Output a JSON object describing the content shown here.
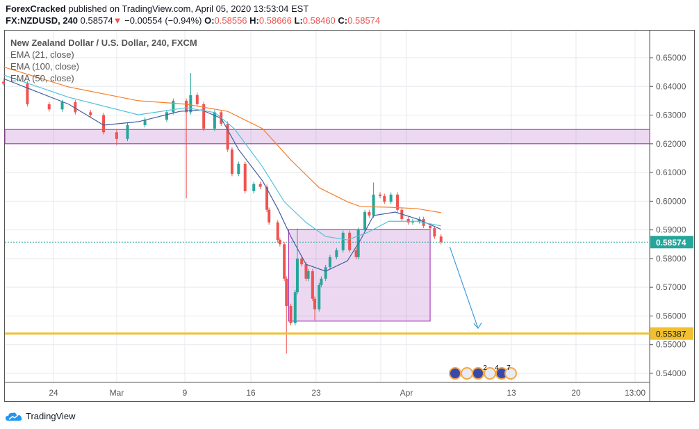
{
  "header": {
    "author": "ForexCracked",
    "published_text": "published on TradingView.com, April 05, 2020 13:53:04 EST",
    "symbol": "FX:NZDUSD, 240",
    "last": "0.58574",
    "change": "−0.00554 (−0.94%)",
    "open_label": "O:",
    "open": "0.58556",
    "high_label": "H:",
    "high": "0.58666",
    "low_label": "L:",
    "low": "0.58460",
    "close_label": "C:",
    "close": "0.58574"
  },
  "legend": {
    "title": "New Zealand Dollar / U.S. Dollar, 240, FXCM",
    "ema1": "EMA (21, close)",
    "ema2": "EMA (100, close)",
    "ema3": "EMA (50, close)"
  },
  "footer": {
    "brand": "TradingView"
  },
  "colors": {
    "up": "#26a69a",
    "down": "#ef5350",
    "ema21": "#3f5e9e",
    "ema50": "#4fc3d9",
    "ema100": "#f57f2b",
    "zone": "#9c27b0",
    "support": "#f0c02e",
    "arrow": "#3d9be0",
    "last_price": "#26a69a"
  },
  "chart_data": {
    "type": "candlestick",
    "symbol": "NZDUSD",
    "interval": "240",
    "ylim": [
      0.5365,
      0.6592
    ],
    "y_ticks": [
      "0.65000",
      "0.64000",
      "0.63000",
      "0.62000",
      "0.61000",
      "0.60000",
      "0.59000",
      "0.58000",
      "0.57000",
      "0.56000",
      "0.55000",
      "0.54000"
    ],
    "x_ticks": [
      "24",
      "Mar",
      "9",
      "16",
      "23",
      "Apr",
      "13",
      "20",
      "13:00"
    ],
    "grid": true,
    "candles": [
      {
        "t": "2020-02-18 04:00",
        "c": 0.641
      },
      {
        "t": "2020-02-20 00:00",
        "c": 0.6338
      },
      {
        "t": "2020-02-21 16:00",
        "c": 0.632
      },
      {
        "t": "2020-02-24 16:00",
        "c": 0.6345
      },
      {
        "t": "2020-02-25 16:00",
        "c": 0.631
      },
      {
        "t": "2020-02-26 20:00",
        "c": 0.63
      },
      {
        "t": "2020-02-27 20:00",
        "c": 0.624
      },
      {
        "t": "2020-02-28 20:00",
        "c": 0.6217,
        "l": 0.6195
      },
      {
        "t": "2020-03-02 16:00",
        "c": 0.6265
      },
      {
        "t": "2020-03-04 00:00",
        "c": 0.6284
      },
      {
        "t": "2020-03-05 16:00",
        "c": 0.631
      },
      {
        "t": "2020-03-06 04:00",
        "c": 0.635
      },
      {
        "t": "2020-03-09 04:00",
        "c": 0.631,
        "l": 0.601
      },
      {
        "t": "2020-03-09 12:00",
        "c": 0.637,
        "h": 0.6447
      },
      {
        "t": "2020-03-10 00:00",
        "c": 0.6338
      },
      {
        "t": "2020-03-10 12:00",
        "c": 0.6253
      },
      {
        "t": "2020-03-11 08:00",
        "c": 0.631
      },
      {
        "t": "2020-03-11 20:00",
        "c": 0.627
      },
      {
        "t": "2020-03-12 08:00",
        "c": 0.618
      },
      {
        "t": "2020-03-12 16:00",
        "c": 0.6095
      },
      {
        "t": "2020-03-13 04:00",
        "c": 0.613
      },
      {
        "t": "2020-03-13 16:00",
        "c": 0.6035
      },
      {
        "t": "2020-03-16 08:00",
        "c": 0.606
      },
      {
        "t": "2020-03-16 20:00",
        "c": 0.605
      },
      {
        "t": "2020-03-17 08:00",
        "c": 0.597
      },
      {
        "t": "2020-03-17 12:00",
        "c": 0.5926
      },
      {
        "t": "2020-03-18 04:00",
        "c": 0.5865
      },
      {
        "t": "2020-03-18 08:00",
        "c": 0.585
      },
      {
        "t": "2020-03-18 16:00",
        "c": 0.573
      },
      {
        "t": "2020-03-18 20:00",
        "c": 0.5635,
        "l": 0.5469
      },
      {
        "t": "2020-03-19 04:00",
        "c": 0.5575
      },
      {
        "t": "2020-03-19 12:00",
        "c": 0.5683
      },
      {
        "t": "2020-03-19 16:00",
        "c": 0.58,
        "h": 0.5905
      },
      {
        "t": "2020-03-20 00:00",
        "c": 0.578
      },
      {
        "t": "2020-03-20 08:00",
        "c": 0.573
      },
      {
        "t": "2020-03-20 12:00",
        "c": 0.5756
      },
      {
        "t": "2020-03-20 20:00",
        "c": 0.566
      },
      {
        "t": "2020-03-23 00:00",
        "c": 0.5623,
        "l": 0.5585
      },
      {
        "t": "2020-03-23 08:00",
        "c": 0.5708
      },
      {
        "t": "2020-03-23 12:00",
        "c": 0.573
      },
      {
        "t": "2020-03-23 20:00",
        "c": 0.577
      },
      {
        "t": "2020-03-24 04:00",
        "c": 0.5805
      },
      {
        "t": "2020-03-24 16:00",
        "c": 0.5829
      },
      {
        "t": "2020-03-25 04:00",
        "c": 0.589
      },
      {
        "t": "2020-03-25 16:00",
        "c": 0.5829
      },
      {
        "t": "2020-03-26 04:00",
        "c": 0.5805
      },
      {
        "t": "2020-03-26 08:00",
        "c": 0.59
      },
      {
        "t": "2020-03-26 20:00",
        "c": 0.5962
      },
      {
        "t": "2020-03-27 04:00",
        "c": 0.595
      },
      {
        "t": "2020-03-27 12:00",
        "c": 0.6023,
        "h": 0.6065
      },
      {
        "t": "2020-03-30 00:00",
        "c": 0.6018
      },
      {
        "t": "2020-03-30 08:00",
        "c": 0.5998
      },
      {
        "t": "2020-03-30 20:00",
        "c": 0.6023
      },
      {
        "t": "2020-03-31 08:00",
        "c": 0.597
      },
      {
        "t": "2020-03-31 16:00",
        "c": 0.5938
      },
      {
        "t": "2020-04-01 04:00",
        "c": 0.5926
      },
      {
        "t": "2020-04-01 12:00",
        "c": 0.593
      },
      {
        "t": "2020-04-02 00:00",
        "c": 0.5938
      },
      {
        "t": "2020-04-02 08:00",
        "c": 0.5914
      },
      {
        "t": "2020-04-02 20:00",
        "c": 0.5906
      },
      {
        "t": "2020-04-03 04:00",
        "c": 0.5877
      },
      {
        "t": "2020-04-03 16:00",
        "c": 0.58574
      }
    ],
    "series": [
      {
        "name": "EMA (21, close)",
        "color_key": "ema21",
        "points": [
          [
            "2020-02-18 04:00",
            0.6427
          ],
          [
            "2020-02-25 04:00",
            0.6338
          ],
          [
            "2020-02-27 20:00",
            0.6265
          ],
          [
            "2020-03-03 12:00",
            0.6277
          ],
          [
            "2020-03-06 16:00",
            0.6313
          ],
          [
            "2020-03-10 08:00",
            0.6318
          ],
          [
            "2020-03-11 20:00",
            0.6289
          ],
          [
            "2020-03-13 04:00",
            0.618
          ],
          [
            "2020-03-17 00:00",
            0.6071
          ],
          [
            "2020-03-18 04:00",
            0.5974
          ],
          [
            "2020-03-19 04:00",
            0.5877
          ],
          [
            "2020-03-20 08:00",
            0.578
          ],
          [
            "2020-03-23 20:00",
            0.5756
          ],
          [
            "2020-03-25 12:00",
            0.5792
          ],
          [
            "2020-03-26 12:00",
            0.5865
          ],
          [
            "2020-03-27 12:00",
            0.595
          ],
          [
            "2020-03-31 04:00",
            0.5962
          ],
          [
            "2020-04-01 20:00",
            0.5938
          ],
          [
            "2020-04-03 16:00",
            0.5902
          ]
        ]
      },
      {
        "name": "EMA (100, close)",
        "color_key": "ema100",
        "points": [
          [
            "2020-02-18 04:00",
            0.6468
          ],
          [
            "2020-02-25 04:00",
            0.6398
          ],
          [
            "2020-03-03 12:00",
            0.635
          ],
          [
            "2020-03-09 04:00",
            0.6338
          ],
          [
            "2020-03-12 08:00",
            0.6313
          ],
          [
            "2020-03-17 00:00",
            0.6253
          ],
          [
            "2020-03-19 04:00",
            0.6144
          ],
          [
            "2020-03-23 08:00",
            0.6047
          ],
          [
            "2020-03-25 12:00",
            0.5998
          ],
          [
            "2020-03-26 12:00",
            0.5981
          ],
          [
            "2020-03-30 16:00",
            0.5979
          ],
          [
            "2020-04-01 20:00",
            0.5974
          ],
          [
            "2020-04-03 16:00",
            0.596
          ]
        ]
      },
      {
        "name": "EMA (50, close)",
        "color_key": "ema50",
        "points": [
          [
            "2020-02-18 04:00",
            0.644
          ],
          [
            "2020-02-25 04:00",
            0.6362
          ],
          [
            "2020-03-03 12:00",
            0.6301
          ],
          [
            "2020-03-09 04:00",
            0.6326
          ],
          [
            "2020-03-11 08:00",
            0.6309
          ],
          [
            "2020-03-12 20:00",
            0.6253
          ],
          [
            "2020-03-17 00:00",
            0.612
          ],
          [
            "2020-03-18 16:00",
            0.5998
          ],
          [
            "2020-03-20 08:00",
            0.5926
          ],
          [
            "2020-03-23 20:00",
            0.5877
          ],
          [
            "2020-03-25 12:00",
            0.5865
          ],
          [
            "2020-03-27 00:00",
            0.589
          ],
          [
            "2020-03-30 16:00",
            0.593
          ],
          [
            "2020-04-01 20:00",
            0.593
          ],
          [
            "2020-04-03 16:00",
            0.5914
          ]
        ]
      }
    ],
    "annotations": {
      "resistance_zone": {
        "top": 0.625,
        "bottom": 0.62
      },
      "range_box": {
        "from": "2020-03-19 00:00",
        "to": "2020-04-02 20:00",
        "top": 0.5901,
        "bottom": 0.5582
      },
      "arrow": {
        "from": [
          "2020-04-06 08:00",
          0.5841
        ],
        "to": [
          "2020-04-08 12:00",
          0.5557
        ]
      },
      "support_line": {
        "price": 0.55387,
        "label": "0.55387"
      },
      "last_price": {
        "price": 0.58574,
        "label": "0.58574"
      },
      "event_labels": [
        "2",
        "4",
        "7"
      ]
    }
  }
}
